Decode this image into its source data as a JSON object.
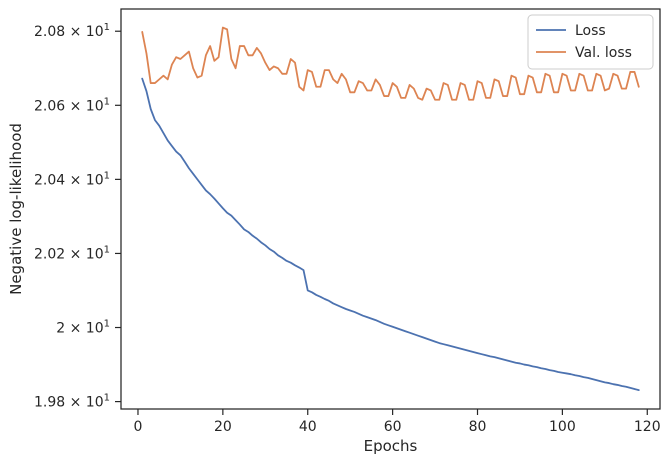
{
  "chart_data": {
    "type": "line",
    "xlabel": "Epochs",
    "ylabel": "Negative log-likelihood",
    "xlim": [
      -4,
      123
    ],
    "ylim": [
      19.78,
      20.86
    ],
    "x_ticks": [
      0,
      20,
      40,
      60,
      80,
      100,
      120
    ],
    "x_tick_labels": [
      "0",
      "20",
      "40",
      "60",
      "80",
      "100",
      "120"
    ],
    "y_ticks": [
      {
        "value": 19.8,
        "mantissa": "1.98",
        "base": "10",
        "exp": "1"
      },
      {
        "value": 20.0,
        "mantissa": "2",
        "base": "10",
        "exp": "1"
      },
      {
        "value": 20.2,
        "mantissa": "2.02",
        "base": "10",
        "exp": "1"
      },
      {
        "value": 20.4,
        "mantissa": "2.04",
        "base": "10",
        "exp": "1"
      },
      {
        "value": 20.6,
        "mantissa": "2.06",
        "base": "10",
        "exp": "1"
      },
      {
        "value": 20.8,
        "mantissa": "2.08",
        "base": "10",
        "exp": "1"
      }
    ],
    "legend_position": "top-right",
    "series": [
      {
        "name": "Loss",
        "color": "#4c72b0",
        "x_start": 1,
        "values": [
          20.672,
          20.638,
          20.59,
          20.56,
          20.545,
          20.525,
          20.505,
          20.49,
          20.475,
          20.465,
          20.448,
          20.43,
          20.415,
          20.4,
          20.385,
          20.37,
          20.36,
          20.348,
          20.335,
          20.322,
          20.31,
          20.302,
          20.29,
          20.278,
          20.265,
          20.258,
          20.248,
          20.24,
          20.23,
          20.222,
          20.212,
          20.205,
          20.195,
          20.188,
          20.18,
          20.175,
          20.168,
          20.162,
          20.155,
          20.1,
          20.095,
          20.088,
          20.083,
          20.077,
          20.072,
          20.065,
          20.06,
          20.055,
          20.05,
          20.046,
          20.042,
          20.037,
          20.032,
          20.028,
          20.024,
          20.02,
          20.015,
          20.01,
          20.006,
          20.002,
          19.998,
          19.994,
          19.99,
          19.986,
          19.982,
          19.978,
          19.974,
          19.97,
          19.966,
          19.962,
          19.958,
          19.955,
          19.952,
          19.949,
          19.946,
          19.943,
          19.94,
          19.937,
          19.934,
          19.931,
          19.928,
          19.925,
          19.922,
          19.92,
          19.917,
          19.914,
          19.911,
          19.908,
          19.905,
          19.903,
          19.9,
          19.898,
          19.895,
          19.893,
          19.89,
          19.888,
          19.885,
          19.883,
          19.88,
          19.878,
          19.876,
          19.874,
          19.871,
          19.869,
          19.866,
          19.864,
          19.861,
          19.858,
          19.855,
          19.852,
          19.85,
          19.847,
          19.845,
          19.842,
          19.84,
          19.837,
          19.834,
          19.831
        ]
      },
      {
        "name": "Val. loss",
        "color": "#dd8452",
        "x_start": 1,
        "values": [
          20.798,
          20.74,
          20.66,
          20.66,
          20.67,
          20.68,
          20.67,
          20.71,
          20.73,
          20.725,
          20.735,
          20.745,
          20.7,
          20.675,
          20.68,
          20.735,
          20.76,
          20.72,
          20.73,
          20.81,
          20.805,
          20.725,
          20.7,
          20.76,
          20.76,
          20.735,
          20.735,
          20.755,
          20.74,
          20.715,
          20.695,
          20.705,
          20.7,
          20.685,
          20.685,
          20.725,
          20.715,
          20.65,
          20.64,
          20.695,
          20.69,
          20.65,
          20.65,
          20.695,
          20.695,
          20.67,
          20.66,
          20.685,
          20.67,
          20.635,
          20.635,
          20.665,
          20.66,
          20.64,
          20.64,
          20.67,
          20.655,
          20.625,
          20.625,
          20.66,
          20.65,
          20.62,
          20.62,
          20.655,
          20.645,
          20.62,
          20.615,
          20.645,
          20.64,
          20.615,
          20.615,
          20.66,
          20.655,
          20.615,
          20.615,
          20.66,
          20.655,
          20.615,
          20.615,
          20.665,
          20.66,
          20.62,
          20.62,
          20.67,
          20.665,
          20.625,
          20.625,
          20.68,
          20.675,
          20.63,
          20.63,
          20.68,
          20.675,
          20.635,
          20.635,
          20.685,
          20.68,
          20.635,
          20.635,
          20.685,
          20.68,
          20.64,
          20.64,
          20.685,
          20.68,
          20.64,
          20.64,
          20.685,
          20.68,
          20.64,
          20.645,
          20.685,
          20.68,
          20.645,
          20.645,
          20.69,
          20.69,
          20.65
        ]
      }
    ]
  }
}
